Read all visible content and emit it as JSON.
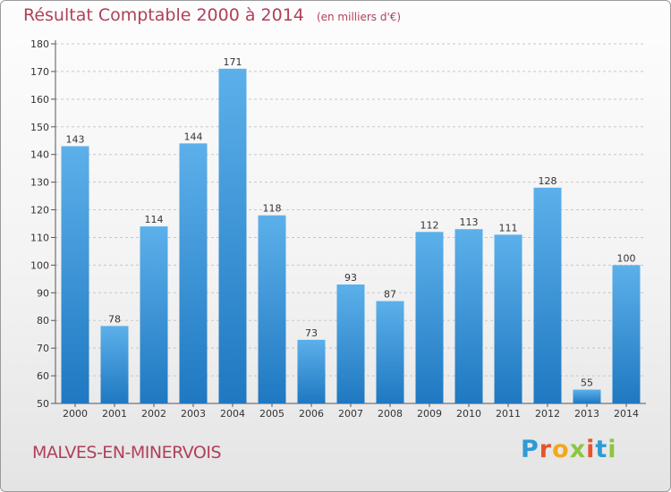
{
  "header": {
    "title": "Résultat Comptable 2000 à 2014",
    "unit": "(en milliers d'€)"
  },
  "footer": {
    "commune": "MALVES-EN-MINERVOIS",
    "logo_letters": [
      "P",
      "r",
      "o",
      "x",
      "i",
      "t",
      "i"
    ],
    "logo_colors": [
      "#2f9ad6",
      "#e8542a",
      "#f2a81d",
      "#8cc63f",
      "#e8542a",
      "#2f9ad6",
      "#8cc63f"
    ]
  },
  "colors": {
    "bar_light": "#5cb0ea",
    "bar_dark": "#1f78c1",
    "title": "#b0405a"
  },
  "chart_data": {
    "type": "bar",
    "title": "Résultat Comptable 2000 à 2014",
    "subtitle": "(en milliers d'€)",
    "categories": [
      "2000",
      "2001",
      "2002",
      "2003",
      "2004",
      "2005",
      "2006",
      "2007",
      "2008",
      "2009",
      "2010",
      "2011",
      "2012",
      "2013",
      "2014"
    ],
    "values": [
      143,
      78,
      114,
      144,
      171,
      118,
      73,
      93,
      87,
      112,
      113,
      111,
      128,
      55,
      100
    ],
    "ylim": [
      50,
      180
    ],
    "yticks": [
      50,
      60,
      70,
      80,
      90,
      100,
      110,
      120,
      130,
      140,
      150,
      160,
      170,
      180
    ],
    "grid": true,
    "grid_style": "dashed"
  }
}
